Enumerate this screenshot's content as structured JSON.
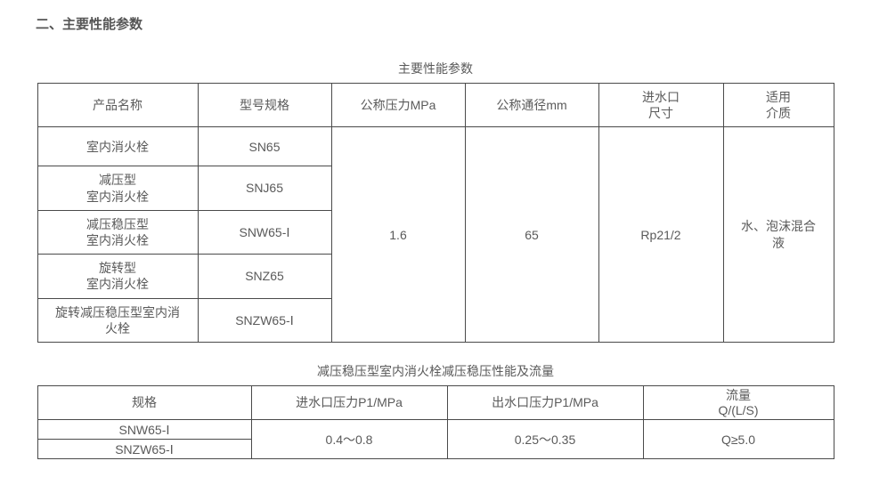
{
  "section_heading": "二、主要性能参数",
  "table1": {
    "title": "主要性能参数",
    "headers": {
      "product_name": "产品名称",
      "model": "型号规格",
      "pressure": "公称压力MPa",
      "diameter": "公称通径mm",
      "inlet_size_line1": "进水口",
      "inlet_size_line2": "尺寸",
      "medium_line1": "适用",
      "medium_line2": "介质"
    },
    "rows": [
      {
        "name": "室内消火栓",
        "model": "SN65"
      },
      {
        "name_line1": "减压型",
        "name_line2": "室内消火栓",
        "model": "SNJ65"
      },
      {
        "name_line1": "减压稳压型",
        "name_line2": "室内消火栓",
        "model": "SNW65-Ⅰ"
      },
      {
        "name_line1": "旋转型",
        "name_line2": "室内消火栓",
        "model": "SNZ65"
      },
      {
        "name_line1": "旋转减压稳压型室内消",
        "name_line2": "火栓",
        "model": "SNZW65-Ⅰ"
      }
    ],
    "merged": {
      "pressure": "1.6",
      "diameter": "65",
      "inlet_size": "Rp21/2",
      "medium_line1": "水、泡沫混合",
      "medium_line2": "液"
    }
  },
  "table2": {
    "title": "减压稳压型室内消火栓减压稳压性能及流量",
    "headers": {
      "spec": "规格",
      "p1": "进水口压力P1/MPa",
      "p2": "出水口压力P1/MPa",
      "flow_line1": "流量",
      "flow_line2": "Q/(L/S)"
    },
    "rows": [
      {
        "spec": "SNW65-Ⅰ"
      },
      {
        "spec": "SNZW65-Ⅰ"
      }
    ],
    "merged": {
      "p1": "0.4～0.8",
      "p2": "0.25～0.35",
      "flow": "Q≥5.0"
    }
  }
}
